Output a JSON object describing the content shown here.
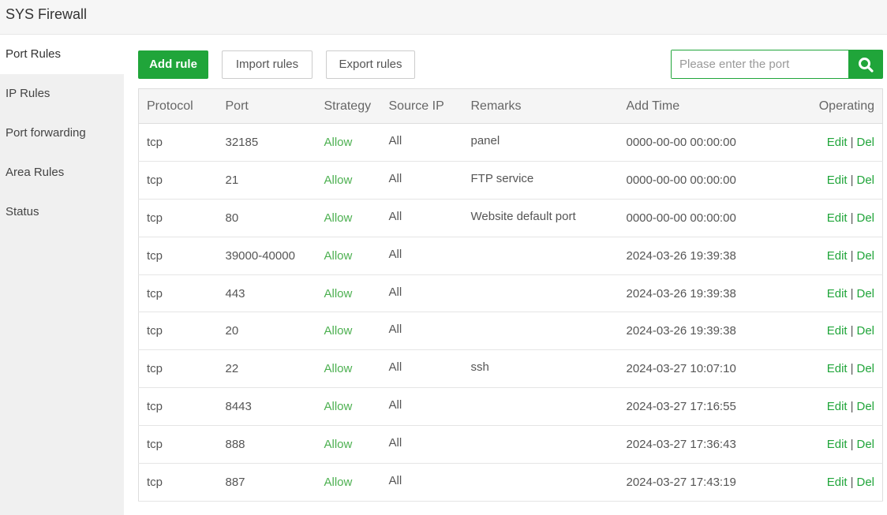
{
  "header": {
    "title": "SYS Firewall"
  },
  "sidebar": {
    "items": [
      {
        "label": "Port Rules",
        "active": true
      },
      {
        "label": "IP Rules"
      },
      {
        "label": "Port forwarding"
      },
      {
        "label": "Area Rules"
      },
      {
        "label": "Status"
      }
    ]
  },
  "toolbar": {
    "add": "Add rule",
    "import": "Import rules",
    "export": "Export rules",
    "search_placeholder": "Please enter the port",
    "search_icon": "search-icon"
  },
  "colors": {
    "accent": "#20a53a",
    "allow": "#4cb050"
  },
  "table": {
    "headers": [
      "Protocol",
      "Port",
      "Strategy",
      "Source IP",
      "Remarks",
      "Add Time",
      "Operating"
    ],
    "edit": "Edit",
    "del": "Del",
    "sep": "|",
    "rows": [
      {
        "protocol": "tcp",
        "port": "32185",
        "strategy": "Allow",
        "source": "All",
        "remarks": "panel",
        "time": "0000-00-00 00:00:00"
      },
      {
        "protocol": "tcp",
        "port": "21",
        "strategy": "Allow",
        "source": "All",
        "remarks": "FTP service",
        "time": "0000-00-00 00:00:00"
      },
      {
        "protocol": "tcp",
        "port": "80",
        "strategy": "Allow",
        "source": "All",
        "remarks": "Website default port",
        "time": "0000-00-00 00:00:00"
      },
      {
        "protocol": "tcp",
        "port": "39000-40000",
        "strategy": "Allow",
        "source": "All",
        "remarks": "",
        "time": "2024-03-26 19:39:38"
      },
      {
        "protocol": "tcp",
        "port": "443",
        "strategy": "Allow",
        "source": "All",
        "remarks": "",
        "time": "2024-03-26 19:39:38"
      },
      {
        "protocol": "tcp",
        "port": "20",
        "strategy": "Allow",
        "source": "All",
        "remarks": "",
        "time": "2024-03-26 19:39:38"
      },
      {
        "protocol": "tcp",
        "port": "22",
        "strategy": "Allow",
        "source": "All",
        "remarks": "ssh",
        "time": "2024-03-27 10:07:10"
      },
      {
        "protocol": "tcp",
        "port": "8443",
        "strategy": "Allow",
        "source": "All",
        "remarks": "",
        "time": "2024-03-27 17:16:55"
      },
      {
        "protocol": "tcp",
        "port": "888",
        "strategy": "Allow",
        "source": "All",
        "remarks": "",
        "time": "2024-03-27 17:36:43"
      },
      {
        "protocol": "tcp",
        "port": "887",
        "strategy": "Allow",
        "source": "All",
        "remarks": "",
        "time": "2024-03-27 17:43:19"
      }
    ]
  }
}
